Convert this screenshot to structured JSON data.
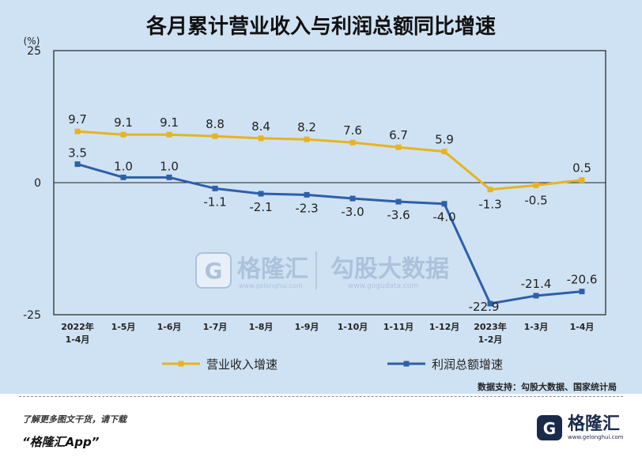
{
  "chart_data": {
    "type": "line",
    "title": "各月累计营业收入与利润总额同比增速",
    "unit_label": "(%)",
    "categories": [
      "2022年\n1-4月",
      "1-5月",
      "1-6月",
      "1-7月",
      "1-8月",
      "1-9月",
      "1-10月",
      "1-11月",
      "1-12月",
      "2023年\n1-2月",
      "1-3月",
      "1-4月"
    ],
    "series": [
      {
        "name": "营业收入增速",
        "color": "#e6b422",
        "values": [
          9.7,
          9.1,
          9.1,
          8.8,
          8.4,
          8.2,
          7.6,
          6.7,
          5.9,
          -1.3,
          -0.5,
          0.5
        ]
      },
      {
        "name": "利润总额增速",
        "color": "#2e5fa8",
        "values": [
          3.5,
          1.0,
          1.0,
          -1.1,
          -2.1,
          -2.3,
          -3.0,
          -3.6,
          -4.0,
          -22.9,
          -21.4,
          -20.6
        ]
      }
    ],
    "ylim": [
      -25,
      25
    ],
    "yticks": [
      "25",
      "0",
      "-25"
    ],
    "legend_position": "bottom",
    "source": "数据支持：勾股大数据、国家统计局"
  },
  "watermark": {
    "name": "格隆汇",
    "name_domain": "www.gelonghui.com",
    "partner": "勾股大数据",
    "partner_domain": "www.gogudata.com"
  },
  "footer": {
    "tip": "了解更多图文干货，请下载",
    "app": "“格隆汇App”",
    "logo_name": "格隆汇",
    "logo_domain": "www.gelonghui.com"
  }
}
